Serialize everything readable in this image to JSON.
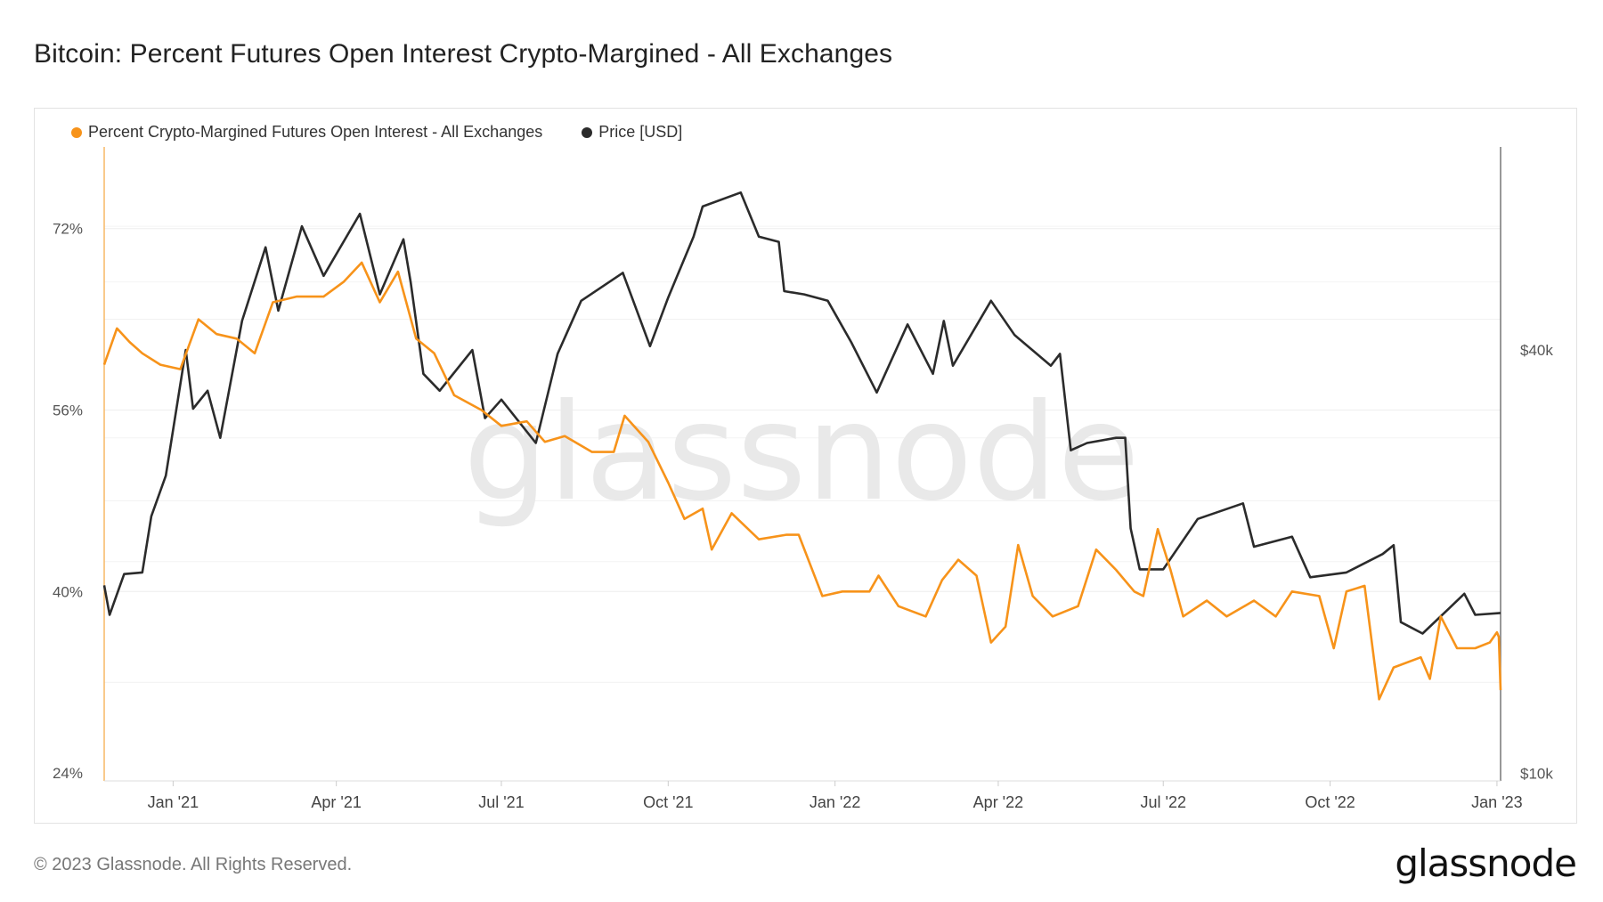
{
  "title": "Bitcoin: Percent Futures Open Interest Crypto-Margined - All Exchanges",
  "footer": "© 2023 Glassnode. All Rights Reserved.",
  "logo_text": "glassnode",
  "watermark": "glassnode",
  "chart_data": {
    "type": "line",
    "title": "Bitcoin: Percent Futures Open Interest Crypto-Margined - All Exchanges",
    "legend_position": "top-left",
    "grid": true,
    "xlim": [
      "2020-11-24",
      "2023-01-03"
    ],
    "x_ticks": [
      {
        "date": "2021-01-01",
        "label": "Jan '21"
      },
      {
        "date": "2021-04-01",
        "label": "Apr '21"
      },
      {
        "date": "2021-07-01",
        "label": "Jul '21"
      },
      {
        "date": "2021-10-01",
        "label": "Oct '21"
      },
      {
        "date": "2022-01-01",
        "label": "Jan '22"
      },
      {
        "date": "2022-04-01",
        "label": "Apr '22"
      },
      {
        "date": "2022-07-01",
        "label": "Jul '22"
      },
      {
        "date": "2022-10-01",
        "label": "Oct '22"
      },
      {
        "date": "2023-01-01",
        "label": "Jan '23"
      }
    ],
    "y_left": {
      "scale": "linear",
      "ylim": [
        23.3,
        79.2
      ],
      "ticks": [
        {
          "value": 24,
          "label": "24%"
        },
        {
          "value": 40,
          "label": "40%"
        },
        {
          "value": 56,
          "label": "56%"
        },
        {
          "value": 72,
          "label": "72%"
        }
      ]
    },
    "y_right": {
      "scale": "log",
      "ylim": [
        9750,
        77800
      ],
      "ticks": [
        {
          "value": 10000,
          "label": "$10k"
        },
        {
          "value": 40000,
          "label": "$40k"
        }
      ]
    },
    "series": [
      {
        "name": "Percent Crypto-Margined Futures Open Interest - All Exchanges",
        "axis": "left",
        "color": "#f7931a",
        "points": [
          [
            "2020-11-24",
            60.0
          ],
          [
            "2020-12-01",
            63.2
          ],
          [
            "2020-12-08",
            62.0
          ],
          [
            "2020-12-15",
            61.0
          ],
          [
            "2020-12-25",
            60.0
          ],
          [
            "2021-01-05",
            59.6
          ],
          [
            "2021-01-15",
            64.0
          ],
          [
            "2021-01-25",
            62.7
          ],
          [
            "2021-02-05",
            62.3
          ],
          [
            "2021-02-15",
            61.0
          ],
          [
            "2021-02-25",
            65.5
          ],
          [
            "2021-03-10",
            66.0
          ],
          [
            "2021-03-25",
            66.0
          ],
          [
            "2021-04-05",
            67.3
          ],
          [
            "2021-04-15",
            69.0
          ],
          [
            "2021-04-25",
            65.5
          ],
          [
            "2021-05-05",
            68.2
          ],
          [
            "2021-05-15",
            62.3
          ],
          [
            "2021-05-25",
            61.0
          ],
          [
            "2021-06-05",
            57.3
          ],
          [
            "2021-06-20",
            56.0
          ],
          [
            "2021-07-01",
            54.6
          ],
          [
            "2021-07-15",
            55.0
          ],
          [
            "2021-07-25",
            53.2
          ],
          [
            "2021-08-05",
            53.7
          ],
          [
            "2021-08-20",
            52.3
          ],
          [
            "2021-09-01",
            52.3
          ],
          [
            "2021-09-07",
            55.5
          ],
          [
            "2021-09-20",
            53.2
          ],
          [
            "2021-10-01",
            49.6
          ],
          [
            "2021-10-10",
            46.4
          ],
          [
            "2021-10-20",
            47.3
          ],
          [
            "2021-10-25",
            43.7
          ],
          [
            "2021-11-05",
            46.9
          ],
          [
            "2021-11-20",
            44.6
          ],
          [
            "2021-12-05",
            45.0
          ],
          [
            "2021-12-12",
            45.0
          ],
          [
            "2021-12-25",
            39.6
          ],
          [
            "2022-01-05",
            40.0
          ],
          [
            "2022-01-20",
            40.0
          ],
          [
            "2022-01-25",
            41.4
          ],
          [
            "2022-02-05",
            38.7
          ],
          [
            "2022-02-20",
            37.8
          ],
          [
            "2022-03-01",
            41.0
          ],
          [
            "2022-03-10",
            42.8
          ],
          [
            "2022-03-20",
            41.4
          ],
          [
            "2022-03-28",
            35.5
          ],
          [
            "2022-04-05",
            36.9
          ],
          [
            "2022-04-12",
            44.1
          ],
          [
            "2022-04-20",
            39.6
          ],
          [
            "2022-05-01",
            37.8
          ],
          [
            "2022-05-15",
            38.7
          ],
          [
            "2022-05-25",
            43.7
          ],
          [
            "2022-06-05",
            41.9
          ],
          [
            "2022-06-15",
            40.0
          ],
          [
            "2022-06-20",
            39.6
          ],
          [
            "2022-06-28",
            45.5
          ],
          [
            "2022-07-05",
            41.9
          ],
          [
            "2022-07-12",
            37.8
          ],
          [
            "2022-07-25",
            39.2
          ],
          [
            "2022-08-05",
            37.8
          ],
          [
            "2022-08-20",
            39.2
          ],
          [
            "2022-09-01",
            37.8
          ],
          [
            "2022-09-10",
            40.0
          ],
          [
            "2022-09-25",
            39.6
          ],
          [
            "2022-10-03",
            35.0
          ],
          [
            "2022-10-10",
            40.0
          ],
          [
            "2022-10-20",
            40.5
          ],
          [
            "2022-10-28",
            30.5
          ],
          [
            "2022-11-05",
            33.3
          ],
          [
            "2022-11-20",
            34.2
          ],
          [
            "2022-11-25",
            32.3
          ],
          [
            "2022-12-01",
            37.8
          ],
          [
            "2022-12-10",
            35.0
          ],
          [
            "2022-12-20",
            35.0
          ],
          [
            "2022-12-28",
            35.5
          ],
          [
            "2023-01-01",
            36.4
          ],
          [
            "2023-01-02",
            36.0
          ],
          [
            "2023-01-03",
            31.3
          ]
        ]
      },
      {
        "name": "Price [USD]",
        "axis": "right",
        "color": "#2b2b2b",
        "points": [
          [
            "2020-11-24",
            18500
          ],
          [
            "2020-11-27",
            16800
          ],
          [
            "2020-12-05",
            19200
          ],
          [
            "2020-12-15",
            19300
          ],
          [
            "2020-12-20",
            23200
          ],
          [
            "2020-12-28",
            26500
          ],
          [
            "2021-01-08",
            40000
          ],
          [
            "2021-01-12",
            33000
          ],
          [
            "2021-01-20",
            35000
          ],
          [
            "2021-01-27",
            30000
          ],
          [
            "2021-02-08",
            44000
          ],
          [
            "2021-02-21",
            56000
          ],
          [
            "2021-02-28",
            45500
          ],
          [
            "2021-03-13",
            60000
          ],
          [
            "2021-03-25",
            51000
          ],
          [
            "2021-04-14",
            62500
          ],
          [
            "2021-04-25",
            48000
          ],
          [
            "2021-05-08",
            57500
          ],
          [
            "2021-05-12",
            50000
          ],
          [
            "2021-05-19",
            37000
          ],
          [
            "2021-05-28",
            35000
          ],
          [
            "2021-06-15",
            40000
          ],
          [
            "2021-06-22",
            32000
          ],
          [
            "2021-07-01",
            34000
          ],
          [
            "2021-07-20",
            29500
          ],
          [
            "2021-08-01",
            39500
          ],
          [
            "2021-08-14",
            47000
          ],
          [
            "2021-09-06",
            51500
          ],
          [
            "2021-09-21",
            40500
          ],
          [
            "2021-10-01",
            47500
          ],
          [
            "2021-10-15",
            58000
          ],
          [
            "2021-10-20",
            64000
          ],
          [
            "2021-11-10",
            67000
          ],
          [
            "2021-11-20",
            58000
          ],
          [
            "2021-12-01",
            57000
          ],
          [
            "2021-12-04",
            48500
          ],
          [
            "2021-12-15",
            48000
          ],
          [
            "2021-12-28",
            47000
          ],
          [
            "2022-01-10",
            41000
          ],
          [
            "2022-01-24",
            34800
          ],
          [
            "2022-02-10",
            43500
          ],
          [
            "2022-02-24",
            37000
          ],
          [
            "2022-03-02",
            44000
          ],
          [
            "2022-03-07",
            38000
          ],
          [
            "2022-03-28",
            47000
          ],
          [
            "2022-04-10",
            42000
          ],
          [
            "2022-04-30",
            38000
          ],
          [
            "2022-05-05",
            39500
          ],
          [
            "2022-05-11",
            28800
          ],
          [
            "2022-05-20",
            29500
          ],
          [
            "2022-06-05",
            30000
          ],
          [
            "2022-06-10",
            30000
          ],
          [
            "2022-06-13",
            22300
          ],
          [
            "2022-06-18",
            19500
          ],
          [
            "2022-07-01",
            19500
          ],
          [
            "2022-07-20",
            23000
          ],
          [
            "2022-08-14",
            24200
          ],
          [
            "2022-08-20",
            21000
          ],
          [
            "2022-09-10",
            21700
          ],
          [
            "2022-09-20",
            19000
          ],
          [
            "2022-10-10",
            19300
          ],
          [
            "2022-10-30",
            20500
          ],
          [
            "2022-11-05",
            21100
          ],
          [
            "2022-11-09",
            16400
          ],
          [
            "2022-11-21",
            15800
          ],
          [
            "2022-12-05",
            17100
          ],
          [
            "2022-12-14",
            18000
          ],
          [
            "2022-12-20",
            16800
          ],
          [
            "2023-01-03",
            16900
          ]
        ]
      }
    ]
  }
}
